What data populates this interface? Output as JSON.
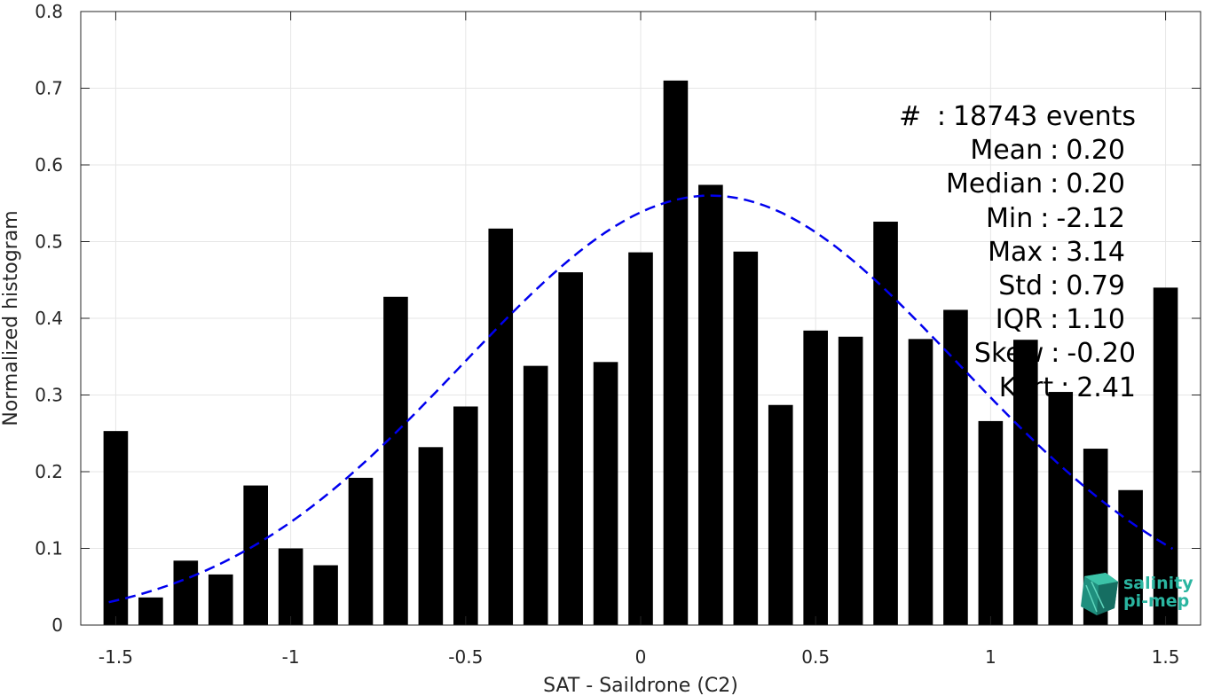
{
  "chart_data": {
    "type": "bar",
    "xlabel": "SAT - Saildrone (C2)",
    "ylabel": "Normalized histogram",
    "xlim": [
      -1.6,
      1.6
    ],
    "ylim": [
      0,
      0.8
    ],
    "xticks": [
      -1.5,
      -1,
      -0.5,
      0,
      0.5,
      1,
      1.5
    ],
    "xtick_labels": [
      "-1.5",
      "-1",
      "-0.5",
      "0",
      "0.5",
      "1",
      "1.5"
    ],
    "yticks": [
      0,
      0.1,
      0.2,
      0.3,
      0.4,
      0.5,
      0.6,
      0.7,
      0.8
    ],
    "ytick_labels": [
      "0",
      "0.1",
      "0.2",
      "0.3",
      "0.4",
      "0.5",
      "0.6",
      "0.7",
      "0.8"
    ],
    "grid": true,
    "bar_color": "#000000",
    "bar_width": 0.07,
    "x": [
      -1.5,
      -1.4,
      -1.3,
      -1.2,
      -1.1,
      -1.0,
      -0.9,
      -0.8,
      -0.7,
      -0.6,
      -0.5,
      -0.4,
      -0.3,
      -0.2,
      -0.1,
      0.0,
      0.1,
      0.2,
      0.3,
      0.4,
      0.5,
      0.6,
      0.7,
      0.8,
      0.9,
      1.0,
      1.1,
      1.2,
      1.3,
      1.4,
      1.5
    ],
    "values": [
      0.253,
      0.036,
      0.084,
      0.066,
      0.182,
      0.1,
      0.078,
      0.192,
      0.428,
      0.232,
      0.285,
      0.517,
      0.338,
      0.46,
      0.343,
      0.486,
      0.71,
      0.574,
      0.487,
      0.287,
      0.384,
      0.376,
      0.526,
      0.373,
      0.411,
      0.266,
      0.372,
      0.304,
      0.23,
      0.176,
      0.44
    ],
    "fit_curve": {
      "type": "gaussian",
      "mean": 0.2,
      "std": 0.71,
      "peak": 0.56,
      "x_range": [
        -1.52,
        1.52
      ],
      "color": "#0000ee",
      "style": "dashed"
    }
  },
  "stats": {
    "lines": [
      {
        "label": "#",
        "value": "18743 events"
      },
      {
        "label": "Mean",
        "value": "0.20"
      },
      {
        "label": "Median",
        "value": "0.20"
      },
      {
        "label": "Min",
        "value": "-2.12"
      },
      {
        "label": "Max",
        "value": "3.14"
      },
      {
        "label": "Std",
        "value": "0.79"
      },
      {
        "label": "IQR",
        "value": "1.10"
      },
      {
        "label": "Skew",
        "value": "-0.20"
      },
      {
        "label": "Kurt",
        "value": "2.41"
      }
    ]
  },
  "logo": {
    "line1": "salinity",
    "line2": "pi-mep",
    "color": "#2ab5a0"
  }
}
